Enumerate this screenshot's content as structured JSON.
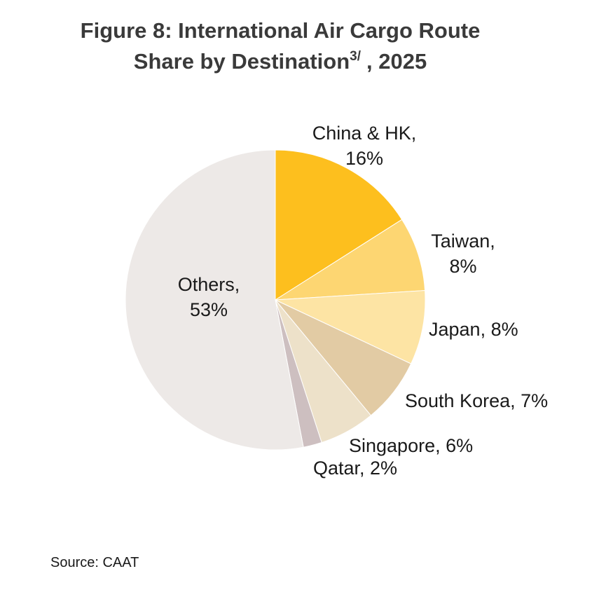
{
  "chart_data": {
    "type": "pie",
    "title": [
      "Figure 8: International Air Cargo Route",
      "Share by Destination"
    ],
    "title_superscript": "3/",
    "title_suffix": ", 2025",
    "values": [
      16,
      8,
      8,
      7,
      6,
      2,
      53
    ],
    "value_labels": [
      "China & HK, 16%",
      "Taiwan, 8%",
      "Japan, 8%",
      "South Korea, 7%",
      "Singapore, 6%",
      "Qatar, 2%",
      "Others, 53%"
    ],
    "colors": [
      "#fdbf1e",
      "#fdd672",
      "#fde4a4",
      "#e2cba4",
      "#ede1c9",
      "#cdbfc0",
      "#ede9e7"
    ],
    "source": "Source: CAAT"
  }
}
